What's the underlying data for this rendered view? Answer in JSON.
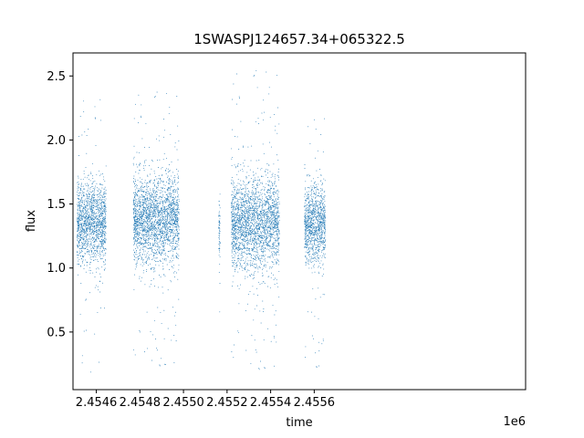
{
  "chart_data": {
    "type": "scatter",
    "title": "1SWASPJ124657.34+065322.5",
    "xlabel": "time",
    "ylabel": "flux",
    "x_offset_label": "1e6",
    "xlim": [
      2454493,
      2456570
    ],
    "ylim": [
      0.05,
      2.68
    ],
    "x_ticks": [
      2454600,
      2454800,
      2455000,
      2455200,
      2455400,
      2455600
    ],
    "x_tick_labels": [
      "2.4546",
      "2.4548",
      "2.4550",
      "2.4552",
      "2.4554",
      "2.4556"
    ],
    "y_ticks": [
      0.5,
      1.0,
      1.5,
      2.0,
      2.5
    ],
    "y_tick_labels": [
      "0.5",
      "1.0",
      "1.5",
      "2.0",
      "2.5"
    ],
    "grid": false,
    "point_color": "#1f77b4",
    "clusters": [
      {
        "x_range": [
          2454512,
          2454645
        ],
        "flux_center": 1.35,
        "flux_spread": 0.16,
        "flux_min": 0.18,
        "flux_max": 2.37
      },
      {
        "x_range": [
          2454770,
          2454980
        ],
        "flux_center": 1.38,
        "flux_spread": 0.17,
        "flux_min": 0.21,
        "flux_max": 2.4
      },
      {
        "x_range": [
          2455162,
          2455168
        ],
        "flux_center": 1.3,
        "flux_spread": 0.12,
        "flux_min": 0.58,
        "flux_max": 1.6
      },
      {
        "x_range": [
          2455220,
          2455440
        ],
        "flux_center": 1.35,
        "flux_spread": 0.18,
        "flux_min": 0.18,
        "flux_max": 2.57
      },
      {
        "x_range": [
          2455555,
          2455652
        ],
        "flux_center": 1.35,
        "flux_spread": 0.15,
        "flux_min": 0.2,
        "flux_max": 2.22
      }
    ]
  }
}
